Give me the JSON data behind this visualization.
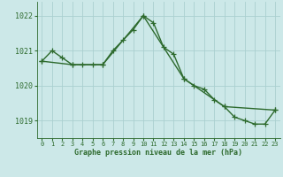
{
  "line1_x": [
    0,
    1,
    2,
    3,
    4,
    5,
    6,
    7,
    8,
    9,
    10,
    11,
    12,
    13,
    14,
    15,
    16,
    17,
    18,
    19,
    20,
    21,
    22,
    23
  ],
  "line1_y": [
    1020.7,
    1021.0,
    1020.8,
    1020.6,
    1020.6,
    1020.6,
    1020.6,
    1021.0,
    1021.3,
    1021.6,
    1022.0,
    1021.8,
    1021.1,
    1020.9,
    1020.2,
    1020.0,
    1019.9,
    1019.6,
    1019.4,
    1019.1,
    1019.0,
    1018.9,
    1018.9,
    1019.3
  ],
  "line2_x": [
    0,
    3,
    6,
    10,
    14,
    18,
    23
  ],
  "line2_y": [
    1020.7,
    1020.6,
    1020.6,
    1022.0,
    1020.2,
    1019.4,
    1019.3
  ],
  "line_color": "#2d6a2d",
  "bg_color": "#cce8e8",
  "grid_color": "#aad0d0",
  "ylabel_ticks": [
    1019,
    1020,
    1021,
    1022
  ],
  "xlabel_ticks": [
    0,
    1,
    2,
    3,
    4,
    5,
    6,
    7,
    8,
    9,
    10,
    11,
    12,
    13,
    14,
    15,
    16,
    17,
    18,
    19,
    20,
    21,
    22,
    23
  ],
  "xlabel": "Graphe pression niveau de la mer (hPa)",
  "ylim": [
    1018.5,
    1022.4
  ],
  "xlim": [
    -0.5,
    23.5
  ],
  "marker": "+",
  "markersize": 4,
  "linewidth": 1.0
}
